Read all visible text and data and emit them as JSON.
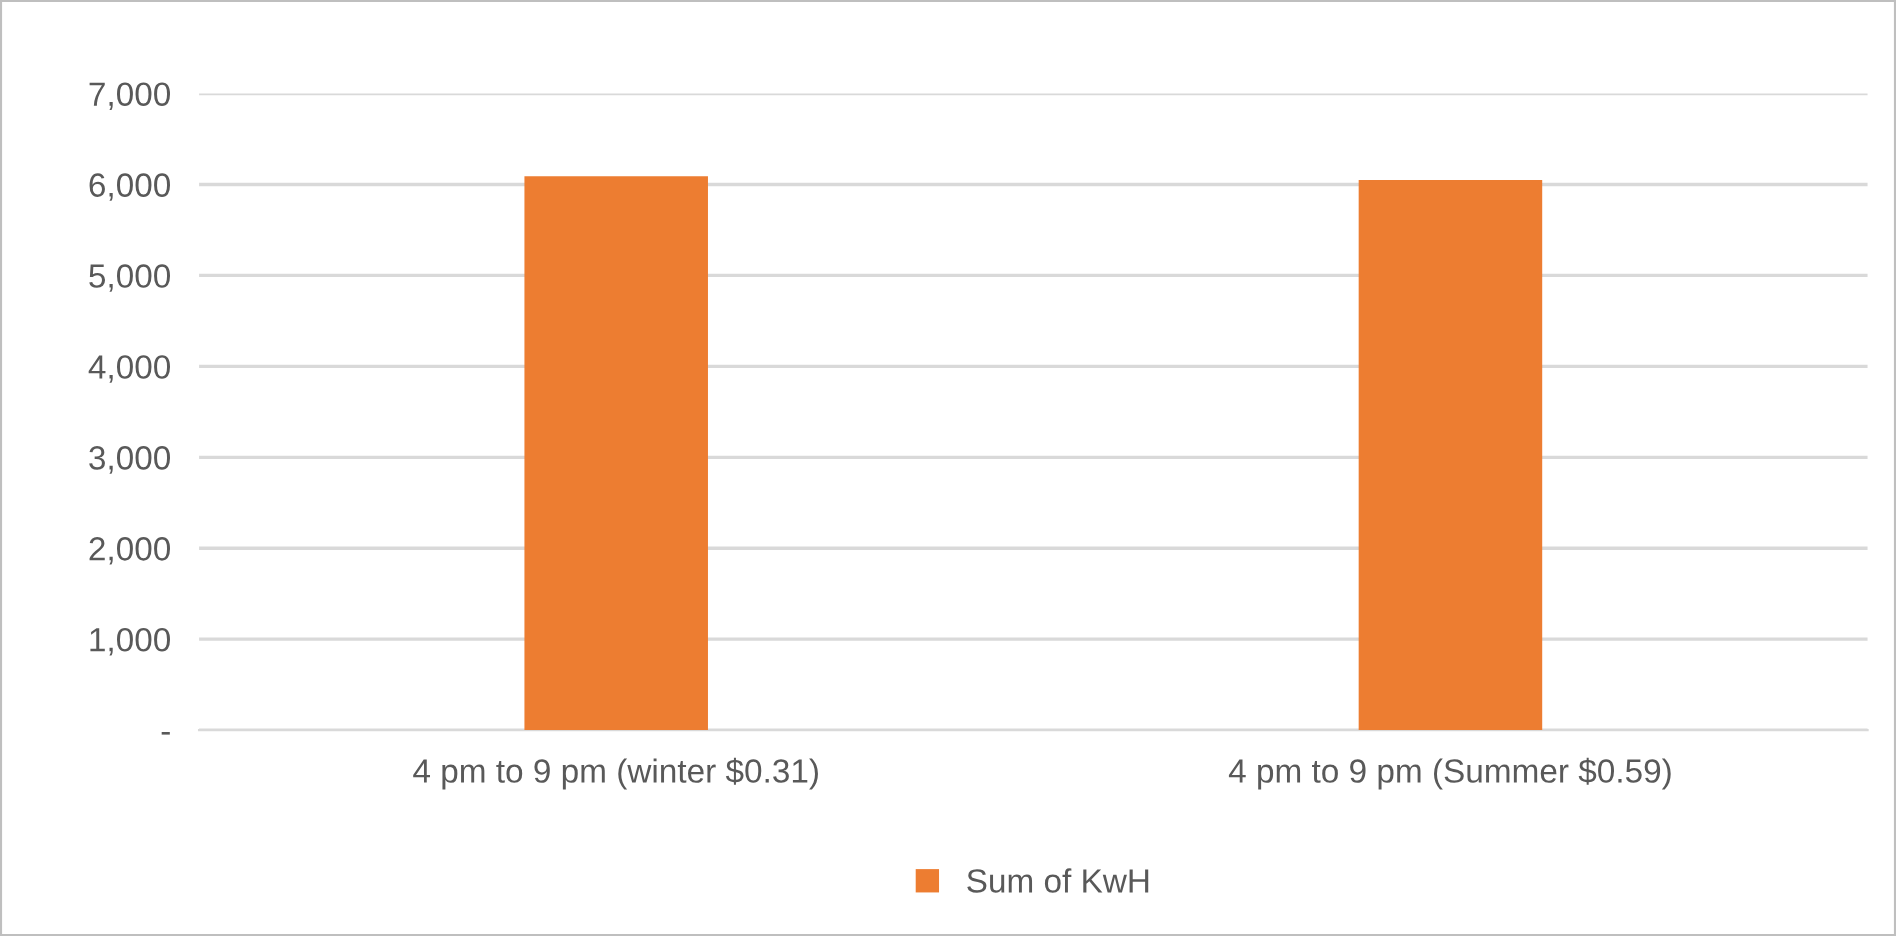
{
  "chart_data": {
    "type": "bar",
    "categories": [
      "4 pm to 9 pm (winter $0.31)",
      "4 pm to 9 pm (Summer $0.59)"
    ],
    "series": [
      {
        "name": "Sum of KwH",
        "color": "#ed7d31",
        "values": [
          6090,
          6050
        ]
      }
    ],
    "ylim": [
      0,
      7000
    ],
    "yticks": [
      {
        "value": 0,
        "label": "-"
      },
      {
        "value": 1000,
        "label": "1,000"
      },
      {
        "value": 2000,
        "label": "2,000"
      },
      {
        "value": 3000,
        "label": "3,000"
      },
      {
        "value": 4000,
        "label": "4,000"
      },
      {
        "value": 5000,
        "label": "5,000"
      },
      {
        "value": 6000,
        "label": "6,000"
      },
      {
        "value": 7000,
        "label": "7,000"
      }
    ],
    "grid": "y",
    "legend": "bottom"
  }
}
